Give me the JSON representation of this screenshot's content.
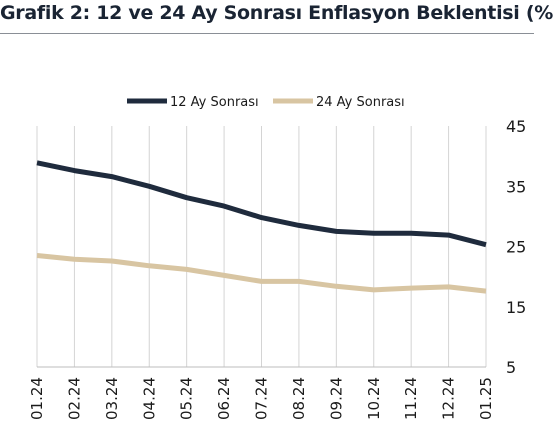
{
  "title": "Grafik 2: 12 ve 24 Ay Sonrası Enflasyon Beklentisi (%",
  "chart_data": {
    "type": "line",
    "title": "Grafik 2: 12 ve 24 Ay Sonrası Enflasyon Beklentisi (%",
    "xlabel": "",
    "ylabel": "",
    "categories": [
      "01.24",
      "02.24",
      "03.24",
      "04.24",
      "05.24",
      "06.24",
      "07.24",
      "08.24",
      "09.24",
      "10.24",
      "11.24",
      "12.24",
      "01.25"
    ],
    "ylim": [
      5,
      45
    ],
    "yticks": [
      "45",
      "35",
      "25",
      "15",
      "5"
    ],
    "grid": "vertical",
    "legend_position": "top-center",
    "series": [
      {
        "name": "12 Ay Sonrası",
        "color": "#1f2b3d",
        "values": [
          38.9,
          37.6,
          36.6,
          35.0,
          33.1,
          31.7,
          29.8,
          28.5,
          27.5,
          27.2,
          27.2,
          26.9,
          25.3
        ]
      },
      {
        "name": "24 Ay Sonrası",
        "color": "#d8c5a2",
        "values": [
          23.5,
          22.9,
          22.6,
          21.8,
          21.2,
          20.2,
          19.2,
          19.2,
          18.4,
          17.8,
          18.1,
          18.3,
          17.6
        ]
      }
    ]
  }
}
